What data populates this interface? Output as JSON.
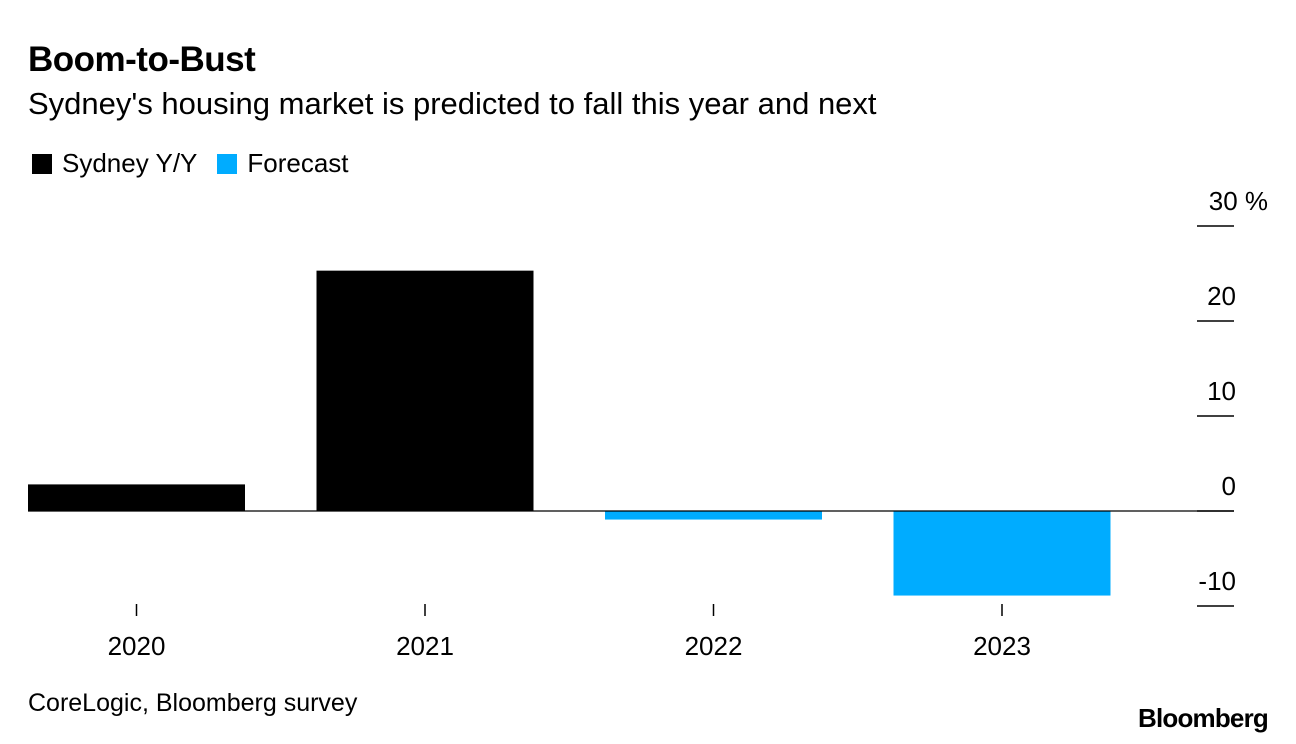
{
  "chart_data": {
    "type": "bar",
    "title": "Boom-to-Bust",
    "subtitle": "Sydney's housing market is predicted to fall this year and next",
    "categories": [
      "2020",
      "2021",
      "2022",
      "2023"
    ],
    "values": [
      2.8,
      25.3,
      -0.9,
      -8.9
    ],
    "bar_series": [
      "sydney",
      "sydney",
      "forecast",
      "forecast"
    ],
    "series": [
      {
        "key": "sydney",
        "name": "Sydney Y/Y",
        "color": "#000000"
      },
      {
        "key": "forecast",
        "name": "Forecast",
        "color": "#00acff"
      }
    ],
    "y_axis": {
      "position": "right",
      "ticks": [
        30,
        20,
        10,
        0,
        -10
      ],
      "tick_labels": [
        "30 %",
        "20",
        "10",
        "0",
        "-10"
      ],
      "ylim": [
        -10,
        30
      ]
    },
    "xlabel": "",
    "ylabel": "",
    "legend_position": "top-left",
    "grid": false
  },
  "footer": {
    "source": "CoreLogic, Bloomberg survey",
    "brand": "Bloomberg"
  }
}
